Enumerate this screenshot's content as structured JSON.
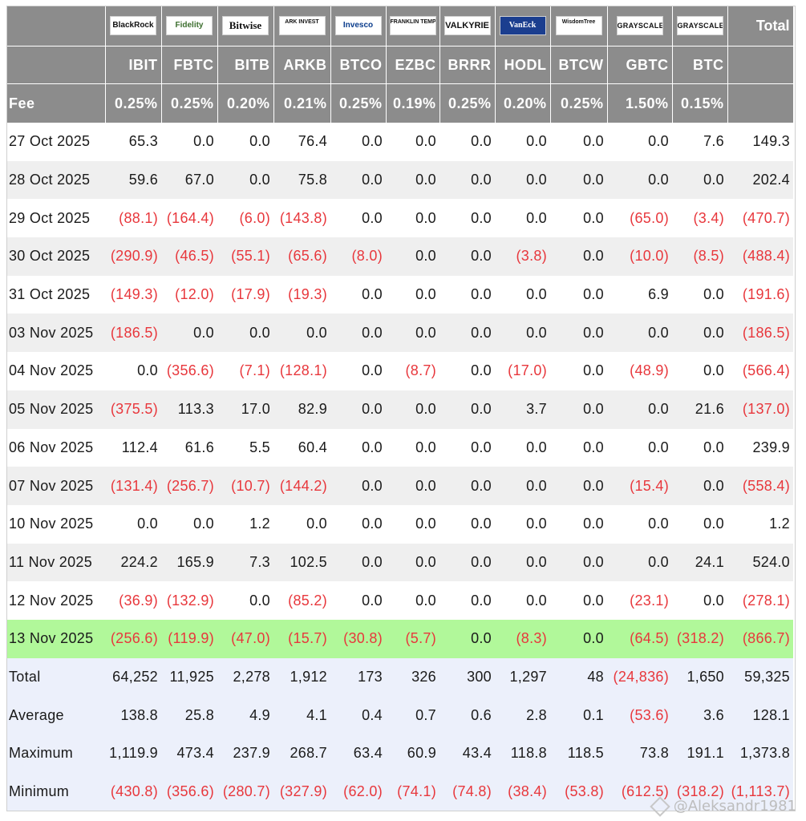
{
  "issuers": [
    {
      "logo": "BlackRock",
      "ticker": "IBIT",
      "fee": "0.25%"
    },
    {
      "logo": "Fidelity",
      "ticker": "FBTC",
      "fee": "0.25%"
    },
    {
      "logo": "Bitwise",
      "ticker": "BITB",
      "fee": "0.20%"
    },
    {
      "logo": "ARK INVEST",
      "ticker": "ARKB",
      "fee": "0.21%"
    },
    {
      "logo": "Invesco",
      "ticker": "BTCO",
      "fee": "0.25%"
    },
    {
      "logo": "FRANKLIN TEMPLETON",
      "ticker": "EZBC",
      "fee": "0.19%"
    },
    {
      "logo": "VALKYRIE",
      "ticker": "BRRR",
      "fee": "0.25%"
    },
    {
      "logo": "VanEck",
      "ticker": "HODL",
      "fee": "0.20%"
    },
    {
      "logo": "WisdomTree",
      "ticker": "BTCW",
      "fee": "0.25%"
    },
    {
      "logo": "GRAYSCALE",
      "ticker": "GBTC",
      "fee": "1.50%"
    },
    {
      "logo": "GRAYSCALE",
      "ticker": "BTC",
      "fee": "0.15%"
    }
  ],
  "header": {
    "total_label": "Total",
    "fee_label": "Fee"
  },
  "rows": [
    {
      "date": "27 Oct 2025",
      "values": [
        "65.3",
        "0.0",
        "0.0",
        "76.4",
        "0.0",
        "0.0",
        "0.0",
        "0.0",
        "0.0",
        "0.0",
        "7.6"
      ],
      "total": "149.3"
    },
    {
      "date": "28 Oct 2025",
      "values": [
        "59.6",
        "67.0",
        "0.0",
        "75.8",
        "0.0",
        "0.0",
        "0.0",
        "0.0",
        "0.0",
        "0.0",
        "0.0"
      ],
      "total": "202.4"
    },
    {
      "date": "29 Oct 2025",
      "values": [
        "(88.1)",
        "(164.4)",
        "(6.0)",
        "(143.8)",
        "0.0",
        "0.0",
        "0.0",
        "0.0",
        "0.0",
        "(65.0)",
        "(3.4)"
      ],
      "total": "(470.7)"
    },
    {
      "date": "30 Oct 2025",
      "values": [
        "(290.9)",
        "(46.5)",
        "(55.1)",
        "(65.6)",
        "(8.0)",
        "0.0",
        "0.0",
        "(3.8)",
        "0.0",
        "(10.0)",
        "(8.5)"
      ],
      "total": "(488.4)"
    },
    {
      "date": "31 Oct 2025",
      "values": [
        "(149.3)",
        "(12.0)",
        "(17.9)",
        "(19.3)",
        "0.0",
        "0.0",
        "0.0",
        "0.0",
        "0.0",
        "6.9",
        "0.0"
      ],
      "total": "(191.6)"
    },
    {
      "date": "03 Nov 2025",
      "values": [
        "(186.5)",
        "0.0",
        "0.0",
        "0.0",
        "0.0",
        "0.0",
        "0.0",
        "0.0",
        "0.0",
        "0.0",
        "0.0"
      ],
      "total": "(186.5)"
    },
    {
      "date": "04 Nov 2025",
      "values": [
        "0.0",
        "(356.6)",
        "(7.1)",
        "(128.1)",
        "0.0",
        "(8.7)",
        "0.0",
        "(17.0)",
        "0.0",
        "(48.9)",
        "0.0"
      ],
      "total": "(566.4)"
    },
    {
      "date": "05 Nov 2025",
      "values": [
        "(375.5)",
        "113.3",
        "17.0",
        "82.9",
        "0.0",
        "0.0",
        "0.0",
        "3.7",
        "0.0",
        "0.0",
        "21.6"
      ],
      "total": "(137.0)"
    },
    {
      "date": "06 Nov 2025",
      "values": [
        "112.4",
        "61.6",
        "5.5",
        "60.4",
        "0.0",
        "0.0",
        "0.0",
        "0.0",
        "0.0",
        "0.0",
        "0.0"
      ],
      "total": "239.9"
    },
    {
      "date": "07 Nov 2025",
      "values": [
        "(131.4)",
        "(256.7)",
        "(10.7)",
        "(144.2)",
        "0.0",
        "0.0",
        "0.0",
        "0.0",
        "0.0",
        "(15.4)",
        "0.0"
      ],
      "total": "(558.4)"
    },
    {
      "date": "10 Nov 2025",
      "values": [
        "0.0",
        "0.0",
        "1.2",
        "0.0",
        "0.0",
        "0.0",
        "0.0",
        "0.0",
        "0.0",
        "0.0",
        "0.0"
      ],
      "total": "1.2"
    },
    {
      "date": "11 Nov 2025",
      "values": [
        "224.2",
        "165.9",
        "7.3",
        "102.5",
        "0.0",
        "0.0",
        "0.0",
        "0.0",
        "0.0",
        "0.0",
        "24.1"
      ],
      "total": "524.0"
    },
    {
      "date": "12 Nov 2025",
      "values": [
        "(36.9)",
        "(132.9)",
        "0.0",
        "(85.2)",
        "0.0",
        "0.0",
        "0.0",
        "0.0",
        "0.0",
        "(23.1)",
        "0.0"
      ],
      "total": "(278.1)"
    },
    {
      "date": "13 Nov 2025",
      "values": [
        "(256.6)",
        "(119.9)",
        "(47.0)",
        "(15.7)",
        "(30.8)",
        "(5.7)",
        "0.0",
        "(8.3)",
        "0.0",
        "(64.5)",
        "(318.2)"
      ],
      "total": "(866.7)",
      "highlight": true
    }
  ],
  "summary": [
    {
      "label": "Total",
      "values": [
        "64,252",
        "11,925",
        "2,278",
        "1,912",
        "173",
        "326",
        "300",
        "1,297",
        "48",
        "(24,836)",
        "1,650"
      ],
      "total": "59,325"
    },
    {
      "label": "Average",
      "values": [
        "138.8",
        "25.8",
        "4.9",
        "4.1",
        "0.4",
        "0.7",
        "0.6",
        "2.8",
        "0.1",
        "(53.6)",
        "3.6"
      ],
      "total": "128.1"
    },
    {
      "label": "Maximum",
      "values": [
        "1,119.9",
        "473.4",
        "237.9",
        "268.7",
        "63.4",
        "60.9",
        "43.4",
        "118.8",
        "118.5",
        "73.8",
        "191.1"
      ],
      "total": "1,373.8"
    },
    {
      "label": "Minimum",
      "values": [
        "(430.8)",
        "(356.6)",
        "(280.7)",
        "(327.9)",
        "(62.0)",
        "(74.1)",
        "(74.8)",
        "(38.4)",
        "(53.8)",
        "(612.5)",
        "(318.2)"
      ],
      "total": "(1,113.7)"
    }
  ],
  "colors": {
    "header_bg": "#8c8c8c",
    "negative": "#e8373c",
    "highlight_row": "#b1f89a",
    "summary_bg": "#ecf0fb"
  },
  "watermark": "@Aleksandr1981"
}
